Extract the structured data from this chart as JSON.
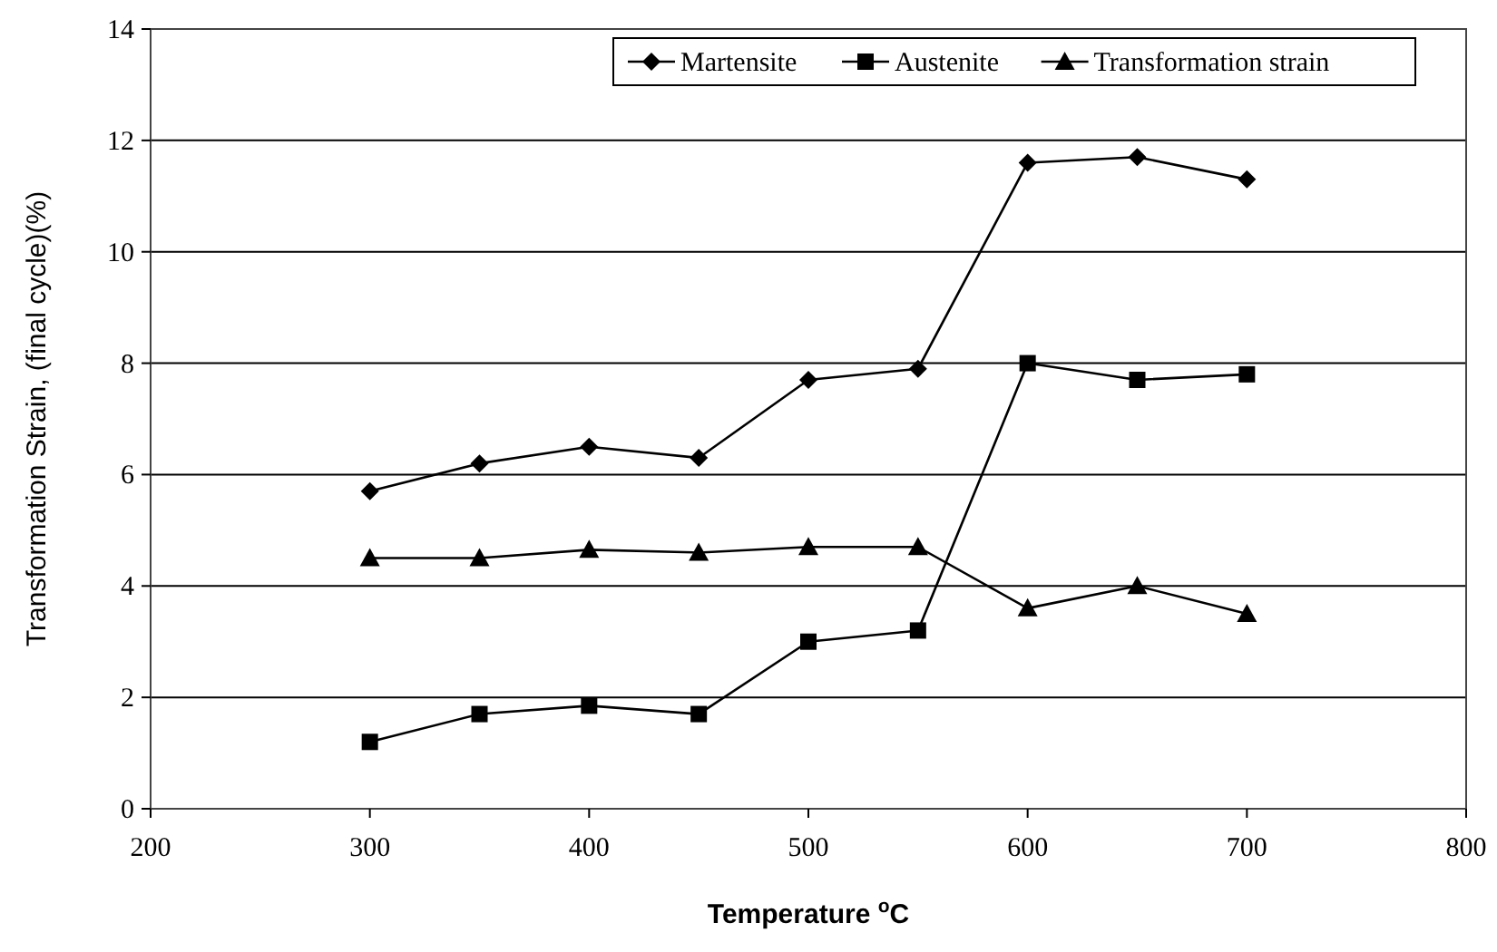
{
  "chart_data": {
    "type": "line",
    "xlabel": "Temperature $^{o}$C",
    "ylabel": "Transformation Strain, (final cycle)(%)",
    "x": [
      300,
      350,
      400,
      450,
      500,
      550,
      600,
      650,
      700
    ],
    "series": [
      {
        "name": "Martensite",
        "color": "#000000",
        "marker": "diamond",
        "values": [
          5.7,
          6.2,
          6.5,
          6.3,
          7.7,
          7.9,
          11.6,
          11.7,
          11.3
        ]
      },
      {
        "name": "Austenite",
        "color": "#000000",
        "marker": "square",
        "values": [
          1.2,
          1.7,
          1.85,
          1.7,
          3.0,
          3.2,
          8.0,
          7.7,
          7.8
        ]
      },
      {
        "name": "Transformation strain",
        "color": "#000000",
        "marker": "triangle",
        "values": [
          4.5,
          4.5,
          4.65,
          4.6,
          4.7,
          4.7,
          3.6,
          4.0,
          3.5
        ]
      }
    ],
    "xlim": [
      200,
      800
    ],
    "xticks": [
      200,
      300,
      400,
      500,
      600,
      700,
      800
    ],
    "ylim": [
      0,
      14
    ],
    "yticks": [
      0,
      2,
      4,
      6,
      8,
      10,
      12,
      14
    ],
    "grid": "y",
    "legend": "top right",
    "line_style": "solid"
  }
}
